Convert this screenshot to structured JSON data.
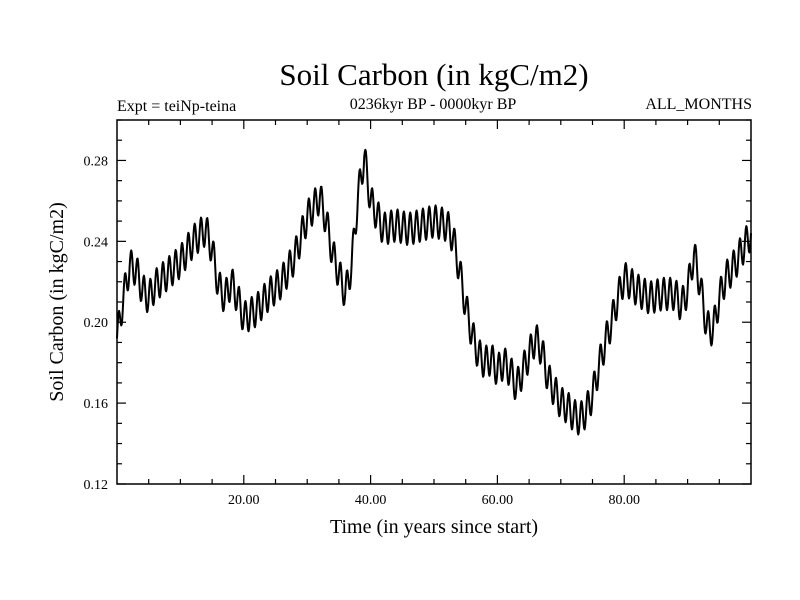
{
  "chart_data": {
    "type": "line",
    "title": "Soil Carbon (in kgC/m2)",
    "subtitle": "0236kyr BP - 0000kyr BP",
    "left_annotation": "Expt = teiNp-teina",
    "right_annotation": "ALL_MONTHS",
    "xlabel": "Time (in years since start)",
    "ylabel": "Soil Carbon (in kgC/m2)",
    "xlim": [
      0,
      100
    ],
    "ylim": [
      0.12,
      0.3
    ],
    "x_ticks": [
      20,
      40,
      60,
      80
    ],
    "x_tick_labels": [
      "20.00",
      "40.00",
      "60.00",
      "80.00"
    ],
    "y_ticks": [
      0.12,
      0.16,
      0.2,
      0.24,
      0.28
    ],
    "y_tick_labels": [
      "0.12",
      "0.16",
      "0.20",
      "0.24",
      "0.28"
    ],
    "seasonal_amplitude": 0.008,
    "series": [
      {
        "name": "Soil Carbon",
        "color": "#000000",
        "trend": [
          [
            0,
            0.192
          ],
          [
            1,
            0.212
          ],
          [
            2,
            0.228
          ],
          [
            3,
            0.226
          ],
          [
            4,
            0.216
          ],
          [
            5,
            0.212
          ],
          [
            6,
            0.218
          ],
          [
            8,
            0.224
          ],
          [
            10,
            0.23
          ],
          [
            12,
            0.24
          ],
          [
            14,
            0.246
          ],
          [
            15,
            0.236
          ],
          [
            16,
            0.218
          ],
          [
            17,
            0.212
          ],
          [
            18,
            0.22
          ],
          [
            19,
            0.212
          ],
          [
            20,
            0.202
          ],
          [
            22,
            0.206
          ],
          [
            24,
            0.214
          ],
          [
            26,
            0.22
          ],
          [
            28,
            0.232
          ],
          [
            30,
            0.252
          ],
          [
            32,
            0.262
          ],
          [
            33,
            0.25
          ],
          [
            34,
            0.234
          ],
          [
            35,
            0.224
          ],
          [
            36,
            0.214
          ],
          [
            37,
            0.228
          ],
          [
            38,
            0.262
          ],
          [
            39,
            0.282
          ],
          [
            40,
            0.26
          ],
          [
            42,
            0.246
          ],
          [
            44,
            0.248
          ],
          [
            46,
            0.246
          ],
          [
            48,
            0.248
          ],
          [
            50,
            0.25
          ],
          [
            52,
            0.248
          ],
          [
            53,
            0.242
          ],
          [
            54,
            0.226
          ],
          [
            55,
            0.208
          ],
          [
            56,
            0.194
          ],
          [
            57,
            0.184
          ],
          [
            58,
            0.18
          ],
          [
            59,
            0.182
          ],
          [
            60,
            0.176
          ],
          [
            61,
            0.18
          ],
          [
            62,
            0.176
          ],
          [
            63,
            0.168
          ],
          [
            64,
            0.176
          ],
          [
            65,
            0.184
          ],
          [
            66,
            0.192
          ],
          [
            67,
            0.186
          ],
          [
            68,
            0.172
          ],
          [
            69,
            0.166
          ],
          [
            70,
            0.16
          ],
          [
            71,
            0.158
          ],
          [
            72,
            0.154
          ],
          [
            73,
            0.152
          ],
          [
            74,
            0.156
          ],
          [
            75,
            0.164
          ],
          [
            76,
            0.178
          ],
          [
            77,
            0.19
          ],
          [
            78,
            0.2
          ],
          [
            79,
            0.212
          ],
          [
            80,
            0.222
          ],
          [
            82,
            0.216
          ],
          [
            84,
            0.212
          ],
          [
            86,
            0.214
          ],
          [
            88,
            0.214
          ],
          [
            89,
            0.208
          ],
          [
            90,
            0.216
          ],
          [
            91,
            0.234
          ],
          [
            92,
            0.218
          ],
          [
            93,
            0.198
          ],
          [
            94,
            0.196
          ],
          [
            95,
            0.212
          ],
          [
            96,
            0.222
          ],
          [
            97,
            0.226
          ],
          [
            98,
            0.232
          ],
          [
            99,
            0.238
          ],
          [
            100,
            0.244
          ]
        ]
      }
    ]
  }
}
